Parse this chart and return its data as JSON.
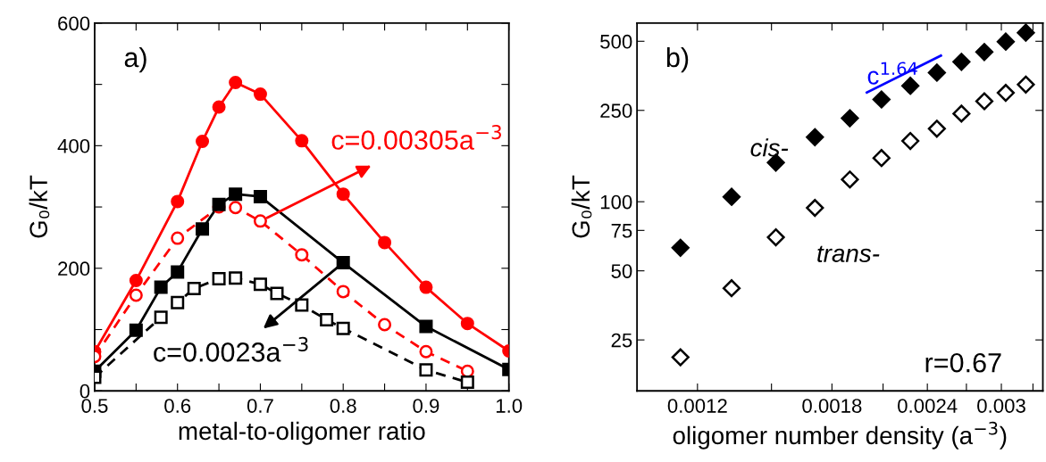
{
  "chart_data": [
    {
      "type": "line",
      "xlabel": "metal-to-oligomer ratio",
      "ylabel": "G₀/kT",
      "xlim": [
        0.5,
        1.0
      ],
      "ylim": [
        0,
        600
      ],
      "xticks": [
        {
          "value": 0.5,
          "label": "0.5"
        },
        {
          "value": 0.55,
          "label": null
        },
        {
          "value": 0.6,
          "label": "0.6"
        },
        {
          "value": 0.65,
          "label": null
        },
        {
          "value": 0.7,
          "label": "0.7"
        },
        {
          "value": 0.75,
          "label": null
        },
        {
          "value": 0.8,
          "label": "0.8"
        },
        {
          "value": 0.85,
          "label": null
        },
        {
          "value": 0.9,
          "label": "0.9"
        },
        {
          "value": 0.95,
          "label": null
        },
        {
          "value": 1.0,
          "label": "1.0"
        }
      ],
      "yticks": [
        0,
        {
          "value": 100,
          "label": null
        },
        200,
        {
          "value": 300,
          "label": null
        },
        400,
        {
          "value": 500,
          "label": null
        },
        600
      ],
      "grid": false,
      "series": [
        {
          "color": "#ff0000",
          "marker": "circle",
          "line_style": "solid",
          "x": [
            0.5,
            0.55,
            0.6,
            0.63,
            0.65,
            0.67,
            0.7,
            0.75,
            0.8,
            0.85,
            0.9,
            0.95,
            1.0
          ],
          "values": [
            64,
            180,
            309,
            407,
            463,
            503,
            484,
            408,
            321,
            242,
            169,
            110,
            65
          ]
        },
        {
          "color": "#ff0000",
          "marker": "circle",
          "line_style": "dashed",
          "x": [
            0.5,
            0.55,
            0.6,
            0.65,
            0.67,
            0.7,
            0.75,
            0.8,
            0.85,
            0.9,
            0.95
          ],
          "values": [
            56,
            156,
            249,
            300,
            299,
            277,
            222,
            162,
            108,
            64,
            32
          ]
        },
        {
          "color": "#000000",
          "marker": "square",
          "line_style": "solid",
          "x": [
            0.5,
            0.55,
            0.58,
            0.6,
            0.63,
            0.65,
            0.67,
            0.7,
            0.8,
            0.9,
            1.0
          ],
          "values": [
            32,
            99,
            169,
            194,
            264,
            304,
            321,
            317,
            209,
            105,
            35
          ]
        },
        {
          "color": "#000000",
          "marker": "square",
          "line_style": "dashed",
          "x": [
            0.5,
            0.58,
            0.6,
            0.62,
            0.65,
            0.67,
            0.7,
            0.72,
            0.75,
            0.78,
            0.8,
            0.9,
            0.95
          ],
          "values": [
            22,
            120,
            144,
            167,
            183,
            184,
            174,
            159,
            140,
            116,
            102,
            34,
            14
          ]
        }
      ],
      "annotations": [
        "a)",
        {
          "text": "c=0.00305a$^{−3}$",
          "x": 0.7,
          "y": 277
        },
        {
          "text": "c=0.0023a$^{−3}$",
          "x": 0.8,
          "y": 209
        }
      ]
    },
    {
      "type": "scatter",
      "log": "xy",
      "xlabel": "oligomer number density (a$^{−3}$)",
      "ylabel": "G₀/kT",
      "xlim": [
        0.001,
        0.0034
      ],
      "ylim": [
        15,
        600
      ],
      "xticks": [
        {
          "value": 0.0012,
          "label": "0.0012"
        },
        {
          "value": 0.0015,
          "label": null
        },
        {
          "value": 0.0018,
          "label": "0.0018"
        },
        {
          "value": 0.0021,
          "label": null
        },
        {
          "value": 0.0024,
          "label": "0.0024"
        },
        {
          "value": 0.0027,
          "label": null
        },
        {
          "value": 0.003,
          "label": "0.003"
        },
        {
          "value": 0.0033,
          "label": null
        }
      ],
      "yticks": [
        25,
        50,
        75,
        100,
        250,
        500
      ],
      "grid": false,
      "series": [
        {
          "name": "cis-",
          "color": "#000000",
          "marker": "diamond",
          "x": [
            0.00114,
            0.00133,
            0.00152,
            0.00171,
            0.0019,
            0.00209,
            0.00228,
            0.00247,
            0.00266,
            0.00285,
            0.00304,
            0.00323
          ],
          "values": [
            63,
            105,
            148,
            191,
            231,
            279,
            320,
            365,
            407,
            449,
            498,
            545
          ]
        },
        {
          "name": "trans-",
          "color": "#000000",
          "marker": "diamond",
          "x": [
            0.00114,
            0.00133,
            0.00152,
            0.00171,
            0.0019,
            0.00209,
            0.00228,
            0.00247,
            0.00266,
            0.00285,
            0.00304,
            0.00323
          ],
          "values": [
            21,
            42,
            70,
            94,
            125,
            155,
            184,
            208,
            242,
            274,
            298,
            324
          ]
        },
        {
          "name": "c$^{1.64}$",
          "type": "line",
          "color": "#0000ff",
          "x": [
            0.002,
            0.0025
          ],
          "values": [
            299,
            433
          ]
        }
      ],
      "annotations": [
        "b)",
        "r=0.67"
      ]
    }
  ]
}
